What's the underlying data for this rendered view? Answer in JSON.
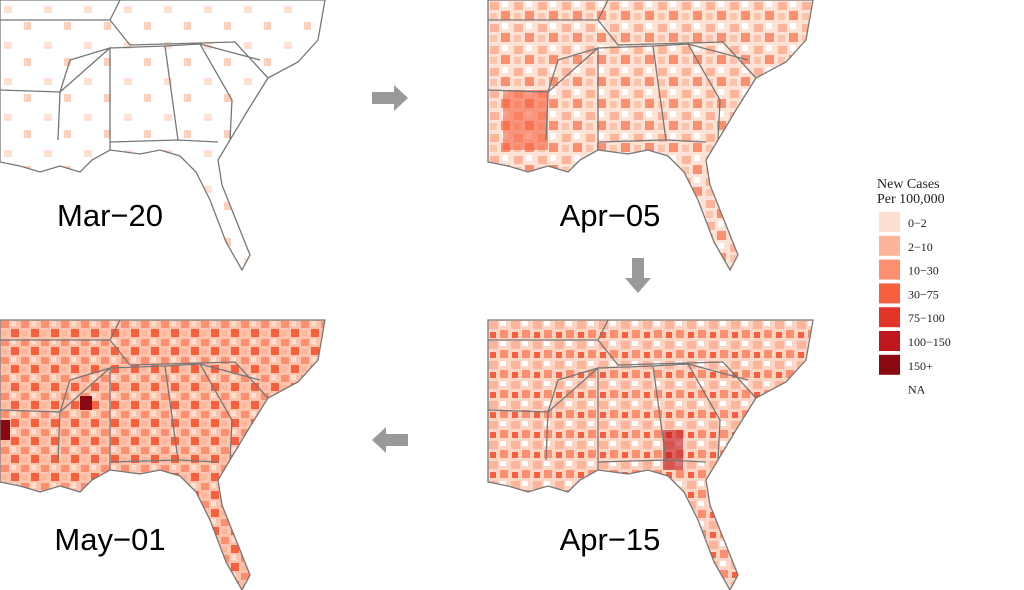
{
  "panels": [
    {
      "label": "Mar−20"
    },
    {
      "label": "Apr−05"
    },
    {
      "label": "Apr−15"
    },
    {
      "label": "May−01"
    }
  ],
  "legend": {
    "title": [
      "New Cases",
      "Per 100,000"
    ],
    "items": [
      {
        "label": "0−2",
        "color": "#fee0d2"
      },
      {
        "label": "2−10",
        "color": "#fcb49a"
      },
      {
        "label": "10−30",
        "color": "#fc8f6f"
      },
      {
        "label": "30−75",
        "color": "#f6603f"
      },
      {
        "label": "75−100",
        "color": "#e3342a"
      },
      {
        "label": "100−150",
        "color": "#c0161d"
      },
      {
        "label": "150+",
        "color": "#8b0a12"
      },
      {
        "label": "NA",
        "color": "#ffffff"
      }
    ]
  }
}
